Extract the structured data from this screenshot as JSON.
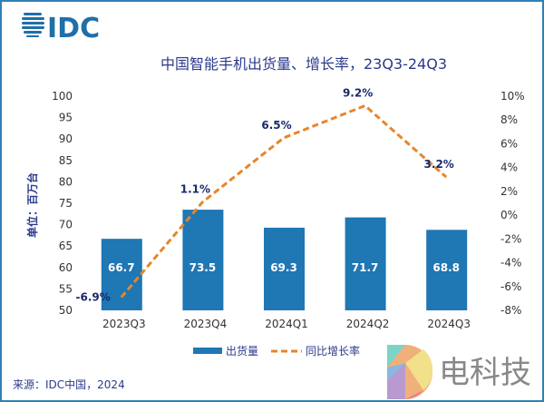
{
  "logo": {
    "text": "IDC",
    "color": "#1f6fa8"
  },
  "watermark": {
    "text": "电科技"
  },
  "source": "来源：IDC中国，2024",
  "chart_data": {
    "type": "bar+line",
    "title": "中国智能手机出货量、增长率，23Q3-24Q3",
    "ylabel": "单位：百万台",
    "categories": [
      "2023Q3",
      "2023Q4",
      "2024Q1",
      "2024Q2",
      "2024Q3"
    ],
    "ylim": [
      50,
      100
    ],
    "yticks": [
      "50",
      "55",
      "60",
      "65",
      "70",
      "75",
      "80",
      "85",
      "90",
      "95",
      "100"
    ],
    "y2lim": [
      -8,
      10
    ],
    "y2ticks": [
      "-8%",
      "-6%",
      "-4%",
      "-2%",
      "0%",
      "2%",
      "4%",
      "6%",
      "8%",
      "10%"
    ],
    "grid": false,
    "legend": "bottom",
    "series": [
      {
        "name": "出货量",
        "type": "bar",
        "axis": "left",
        "color": "#1f77b4",
        "values": [
          66.7,
          73.5,
          69.3,
          71.7,
          68.8
        ],
        "labels": [
          "66.7",
          "73.5",
          "69.3",
          "71.7",
          "68.8"
        ]
      },
      {
        "name": "同比增长率",
        "type": "line",
        "style": "dashed",
        "axis": "right",
        "color": "#e8852a",
        "values": [
          -6.9,
          1.1,
          6.5,
          9.2,
          3.2
        ],
        "labels": [
          "-6.9%",
          "1.1%",
          "6.5%",
          "9.2%",
          "3.2%"
        ]
      }
    ]
  }
}
